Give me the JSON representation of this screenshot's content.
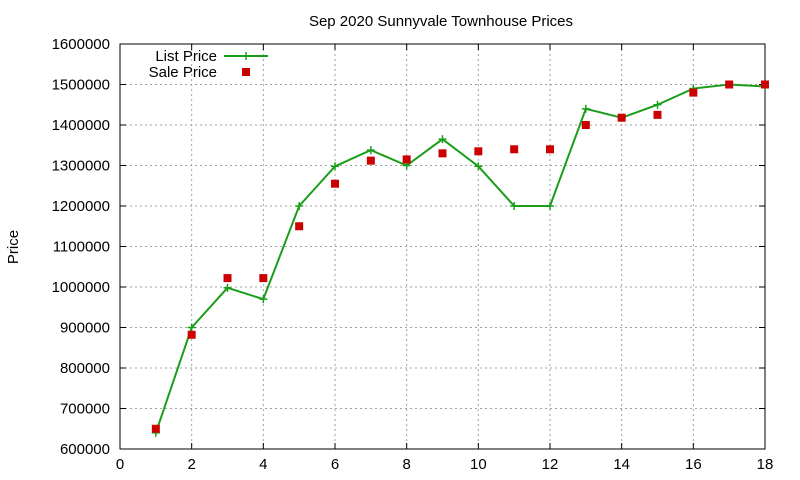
{
  "chart_data": {
    "type": "line",
    "title": "Sep 2020 Sunnyvale Townhouse Prices",
    "xlabel": "",
    "ylabel": "Price",
    "xlim": [
      0,
      18
    ],
    "ylim": [
      600000,
      1600000
    ],
    "x_ticks": [
      0,
      2,
      4,
      6,
      8,
      10,
      12,
      14,
      16,
      18
    ],
    "y_ticks": [
      600000,
      700000,
      800000,
      900000,
      1000000,
      1100000,
      1200000,
      1300000,
      1400000,
      1500000,
      1600000
    ],
    "grid": true,
    "legend_position": "top-left",
    "series": [
      {
        "name": "List Price",
        "style": "line-with-plus-markers",
        "color": "#1a9e1a",
        "x": [
          1,
          2,
          3,
          4,
          5,
          6,
          7,
          8,
          9,
          10,
          11,
          12,
          13,
          14,
          15,
          16,
          17,
          18
        ],
        "values": [
          640000,
          900000,
          998000,
          970000,
          1200000,
          1298000,
          1338000,
          1300000,
          1365000,
          1298000,
          1200000,
          1200000,
          1440000,
          1418000,
          1450000,
          1490000,
          1500000,
          1495000
        ]
      },
      {
        "name": "Sale Price",
        "style": "square-points",
        "color": "#cc0000",
        "x": [
          1,
          2,
          3,
          4,
          5,
          6,
          7,
          8,
          9,
          10,
          11,
          12,
          13,
          14,
          15,
          16,
          17,
          18
        ],
        "values": [
          650000,
          882000,
          1022000,
          1022000,
          1150000,
          1255000,
          1312000,
          1315000,
          1330000,
          1335000,
          1340000,
          1340000,
          1400000,
          1418000,
          1425000,
          1480000,
          1500000,
          1500000
        ]
      }
    ]
  }
}
